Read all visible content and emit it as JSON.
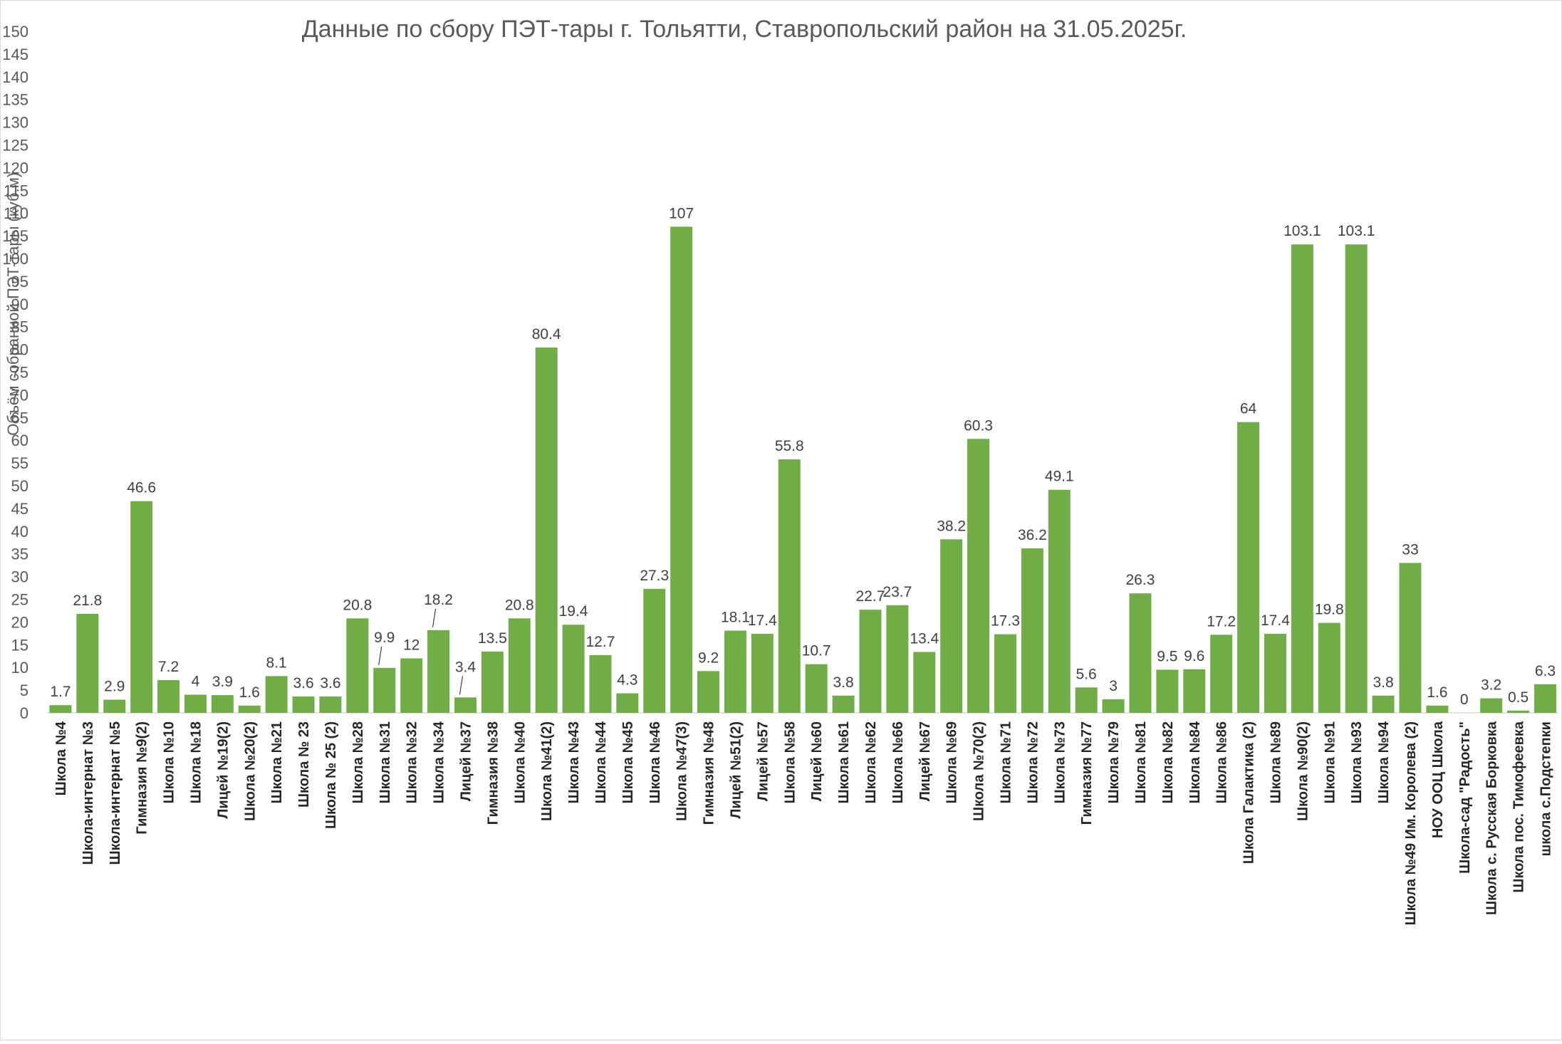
{
  "chart_data": {
    "type": "bar",
    "title": "Данные по сбору ПЭТ-тары г. Тольятти, Ставропольский район на 31.05.2025г.",
    "ylabel": "Объём собранной ПЭТ-тары (куб.м)",
    "xlabel": "",
    "ylim": [
      0,
      150
    ],
    "ytick_step": 5,
    "grid": false,
    "legend": "none",
    "bar_color": "#70AD47",
    "categories": [
      "Школа №4",
      "Школа-интернат №3",
      "Школа-интернат №5",
      "Гимназия №9(2)",
      "Школа №10",
      "Школа №18",
      "Лицей №19(2)",
      "Школа №20(2)",
      "Школа №21",
      "Школа № 23",
      "Школа № 25 (2)",
      "Школа №28",
      "Школа №31",
      "Школа №32",
      "Школа №34",
      "Лицей №37",
      "Гимназия №38",
      "Школа №40",
      "Школа №41(2)",
      "Школа №43",
      "Школа №44",
      "Школа №45",
      "Школа №46",
      "Школа №47(3)",
      "Гимназия №48",
      "Лицей №51(2)",
      "Лицей №57",
      "Школа №58",
      "Лицей №60",
      "Школа №61",
      "Школа №62",
      "Школа №66",
      "Лицей №67",
      "Школа №69",
      "Школа №70(2)",
      "Школа №71",
      "Школа №72",
      "Школа №73",
      "Гимназия №77",
      "Школа №79",
      "Школа №81",
      "Школа №82",
      "Школа №84",
      "Школа №86",
      "Школа Галактика (2)",
      "Школа №89",
      "Школа №90(2)",
      "Школа №91",
      "Школа №93",
      "Школа №94",
      "Школа №49 Им. Королева (2)",
      "НОУ ООЦ Школа",
      "Школа-сад \"Радость\"",
      "Школа с. Русская Борковка",
      "Школа пос. Тимофеевка",
      "школа с.Подстепки"
    ],
    "values": [
      1.7,
      21.8,
      2.9,
      46.6,
      7.2,
      4,
      3.9,
      1.6,
      8.1,
      3.6,
      3.6,
      20.8,
      9.9,
      12,
      18.2,
      3.4,
      13.5,
      20.8,
      80.4,
      19.4,
      12.7,
      4.3,
      27.3,
      107,
      9.2,
      18.1,
      17.4,
      55.8,
      10.7,
      3.8,
      22.7,
      23.7,
      13.4,
      38.2,
      60.3,
      17.3,
      36.2,
      49.1,
      5.6,
      3,
      26.3,
      9.5,
      9.6,
      17.2,
      64,
      17.4,
      103.1,
      19.8,
      103.1,
      3.8,
      33,
      1.6,
      0,
      3.2,
      0.5,
      6.3
    ],
    "data_labels": [
      "1.7",
      "21.8",
      "2.9",
      "46.6",
      "7.2",
      "4",
      "3.9",
      "1.6",
      "8.1",
      "3.6",
      "3.6",
      "20.8",
      "9.9",
      "12",
      "18.2",
      "3.4",
      "13.5",
      "20.8",
      "80.4",
      "19.4",
      "12.7",
      "4.3",
      "27.3",
      "107",
      "9.2",
      "18.1",
      "17.4",
      "55.8",
      "10.7",
      "3.8",
      "22.7",
      "23.7",
      "13.4",
      "38.2",
      "60.3",
      "17.3",
      "36.2",
      "49.1",
      "5.6",
      "3",
      "26.3",
      "9.5",
      "9.6",
      "17.2",
      "64",
      "17.4",
      "103.1",
      "19.8",
      "103.1",
      "3.8",
      "33",
      "1.6",
      "0",
      "3.2",
      "0.5",
      "6.3"
    ],
    "y_ticks": [
      "0",
      "5",
      "10",
      "15",
      "20",
      "25",
      "30",
      "35",
      "40",
      "45",
      "50",
      "55",
      "60",
      "65",
      "70",
      "75",
      "80",
      "85",
      "90",
      "95",
      "100",
      "105",
      "110",
      "115",
      "120",
      "125",
      "130",
      "135",
      "140",
      "145",
      "150"
    ]
  }
}
